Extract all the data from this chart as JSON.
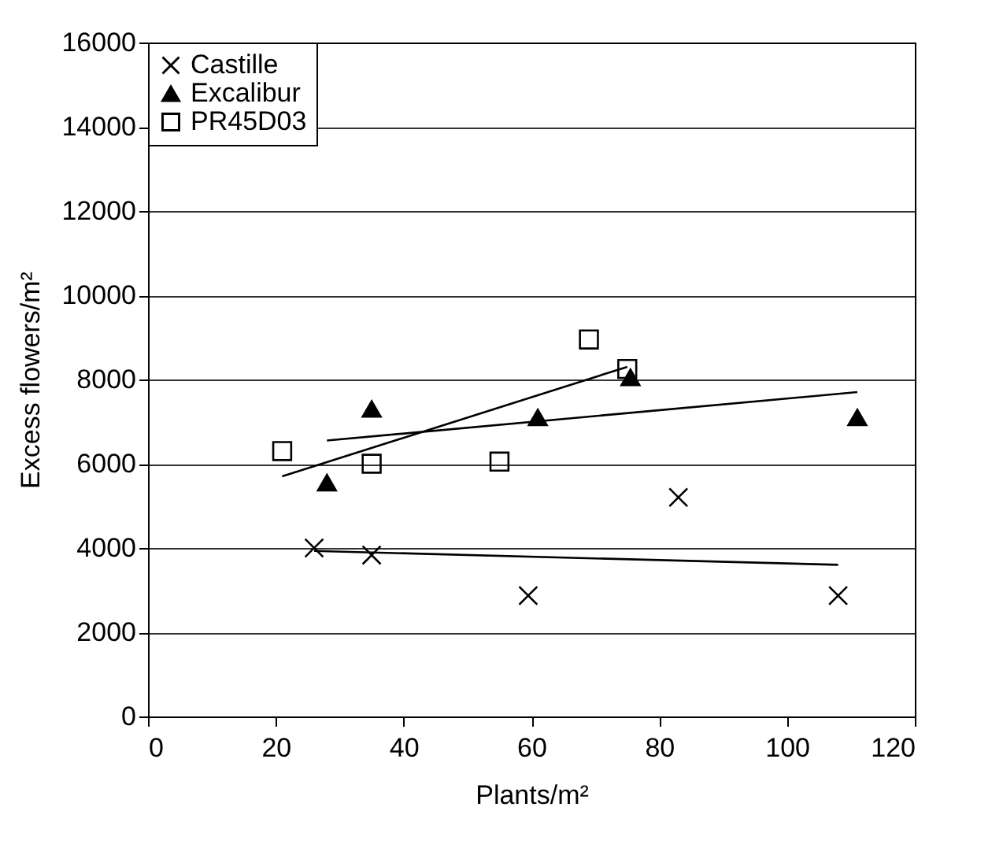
{
  "chart_data": {
    "type": "scatter",
    "xlabel": "Plants/m²",
    "ylabel": "Excess flowers/m²",
    "xlim": [
      0,
      120
    ],
    "xticks": [
      0,
      20,
      40,
      60,
      80,
      100,
      120
    ],
    "ylim": [
      0,
      16000
    ],
    "yticks": [
      0,
      2000,
      4000,
      6000,
      8000,
      10000,
      12000,
      14000,
      16000
    ],
    "grid": "y",
    "legend": "top left",
    "series": [
      {
        "name": "Castille",
        "color": "#000000",
        "marker": "cross",
        "x": [
          26,
          35,
          59.5,
          83,
          108
        ],
        "values": [
          4000,
          3830,
          2870,
          5200,
          2870
        ]
      },
      {
        "name": "Excalibur",
        "color": "#000000",
        "marker": "triangle",
        "x": [
          28,
          35,
          61,
          75.5,
          111
        ],
        "values": [
          5550,
          7300,
          7100,
          8050,
          7100
        ]
      },
      {
        "name": "PR45D03",
        "color": "#000000",
        "marker": "square",
        "x": [
          21,
          35,
          55,
          69,
          75
        ],
        "values": [
          6300,
          6000,
          6050,
          8950,
          8250
        ]
      },
      {
        "type": "line",
        "color": "#000000",
        "x": [
          26,
          108
        ],
        "values": [
          3930,
          3600
        ]
      },
      {
        "type": "line",
        "color": "#000000",
        "x": [
          28,
          111
        ],
        "values": [
          6550,
          7700
        ]
      },
      {
        "type": "line",
        "color": "#000000",
        "x": [
          21,
          75
        ],
        "values": [
          5700,
          8300
        ]
      }
    ]
  }
}
